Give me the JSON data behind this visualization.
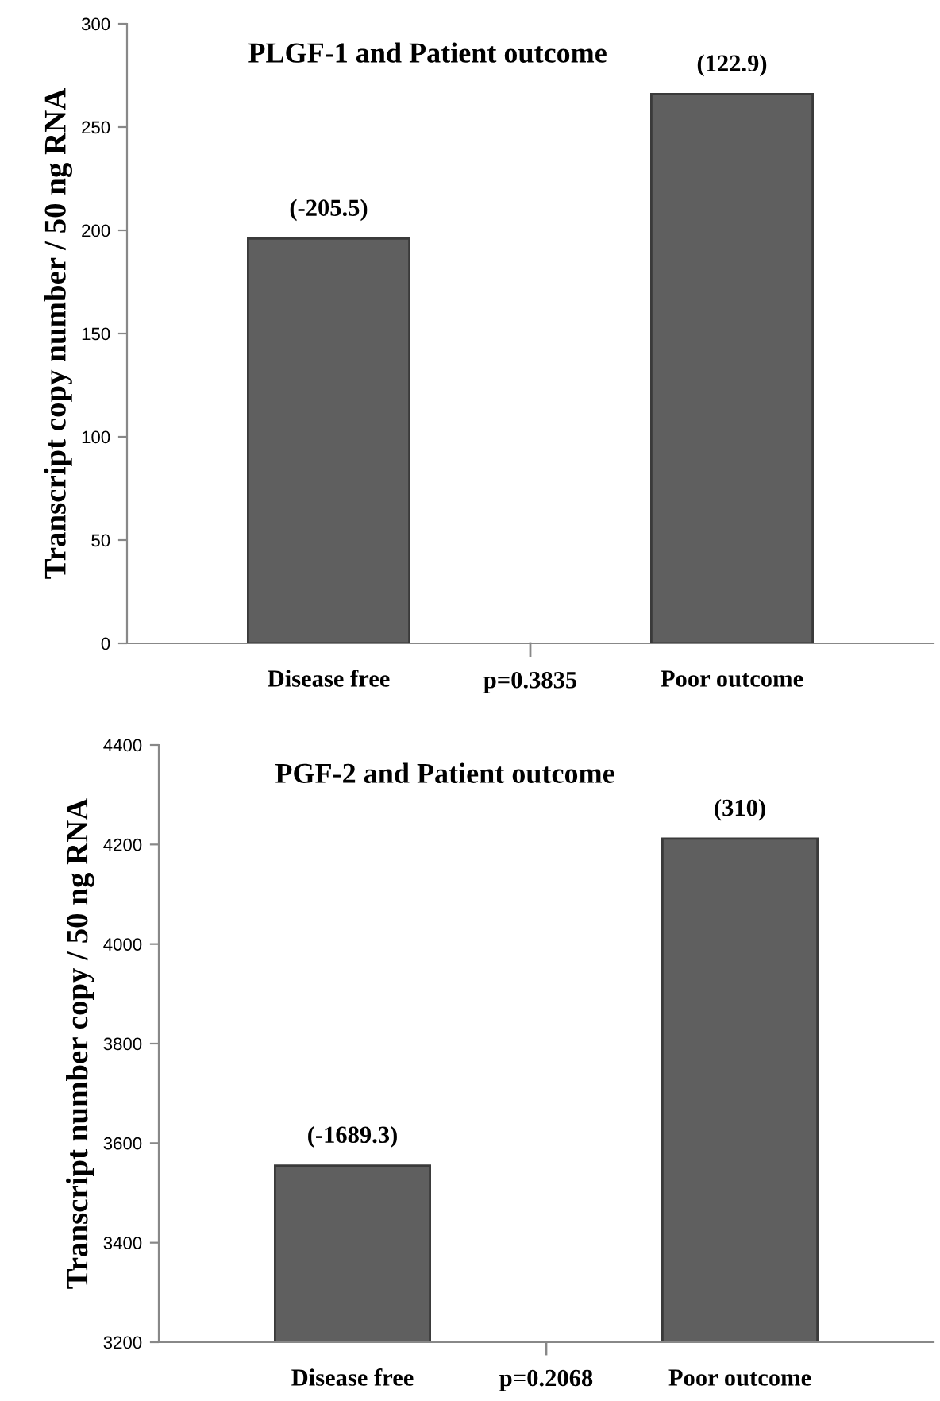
{
  "chart_data": [
    {
      "type": "bar",
      "title": "PLGF-1 and Patient outcome",
      "ylabel": "Transcript copy number / 50 ng RNA",
      "categories": [
        "Disease free",
        "Poor outcome"
      ],
      "values": [
        196,
        266
      ],
      "color": "#5f5f5f",
      "annotations": [
        {
          "text": "(-205.5)",
          "x": "Disease free",
          "y": 196
        },
        {
          "text": "(122.9)",
          "x": "Poor outcome",
          "y": 266
        },
        "p=0.3835"
      ],
      "ylim": [
        0,
        300
      ],
      "yticks": [
        0,
        50,
        100,
        150,
        200,
        250,
        300
      ],
      "grid": false,
      "legend": false
    },
    {
      "type": "bar",
      "title": "PGF-2 and Patient outcome",
      "ylabel": "Transcript number copy / 50 ng RNA",
      "categories": [
        "Disease free",
        "Poor outcome"
      ],
      "values": [
        3555,
        4212
      ],
      "color": "#5f5f5f",
      "annotations": [
        {
          "text": "(-1689.3)",
          "x": "Disease free",
          "y": 3555
        },
        {
          "text": "(310)",
          "x": "Poor outcome",
          "y": 4212
        },
        "p=0.2068"
      ],
      "ylim": [
        3200,
        4400
      ],
      "yticks": [
        3200,
        3400,
        3600,
        3800,
        4000,
        4200,
        4400
      ],
      "grid": false,
      "legend": false
    }
  ]
}
